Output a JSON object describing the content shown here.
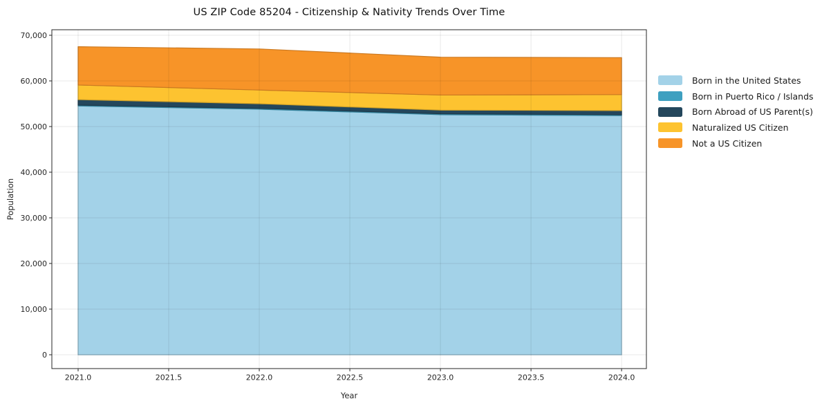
{
  "chart_data": {
    "type": "area",
    "stacked": true,
    "title": "US ZIP Code 85204 - Citizenship & Nativity Trends Over Time",
    "xlabel": "Year",
    "ylabel": "Population",
    "x": [
      2021,
      2022,
      2023,
      2024
    ],
    "series": [
      {
        "name": "Born in the United States",
        "color": "#A3D2E8",
        "values": [
          54500,
          53800,
          52600,
          52400
        ]
      },
      {
        "name": "Born in Puerto Rico / Islands",
        "color": "#3EA0C0",
        "values": [
          200,
          200,
          200,
          200
        ]
      },
      {
        "name": "Born Abroad of US Parent(s)",
        "color": "#24475C",
        "values": [
          1200,
          1000,
          800,
          900
        ]
      },
      {
        "name": "Naturalized US Citizen",
        "color": "#FDC330",
        "values": [
          3200,
          3000,
          3300,
          3500
        ]
      },
      {
        "name": "Not a US Citizen",
        "color": "#F79428",
        "values": [
          8400,
          9000,
          8300,
          8100
        ]
      }
    ],
    "x_ticks": [
      2021,
      2021.5,
      2022,
      2022.5,
      2023,
      2023.5,
      2024
    ],
    "x_tick_labels": [
      "2021.0",
      "2021.5",
      "2022.0",
      "2022.5",
      "2023.0",
      "2023.5",
      "2024.0"
    ],
    "y_ticks": [
      0,
      10000,
      20000,
      30000,
      40000,
      50000,
      60000,
      70000
    ],
    "y_tick_labels": [
      "0",
      "10,000",
      "20,000",
      "30,000",
      "40,000",
      "50,000",
      "60,000",
      "70,000"
    ],
    "xlim": [
      2020.855,
      2024.137
    ],
    "ylim": [
      -3030,
      71212
    ],
    "grid": true,
    "legend_position": "upper-right-outside",
    "frame_color": "#262626",
    "tick_label_color": "#262626"
  }
}
